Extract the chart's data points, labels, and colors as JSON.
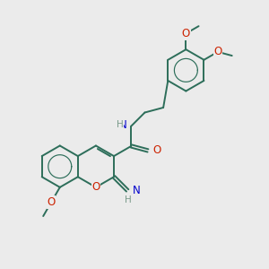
{
  "background_color": "#ebebeb",
  "bond_color": "#2d6e5a",
  "bond_width": 1.4,
  "atom_colors": {
    "O": "#cc2200",
    "N": "#0000cc",
    "H_gray": "#7a9a8a"
  },
  "font_size": 8.5,
  "fig_size": [
    3.0,
    3.0
  ],
  "dpi": 100
}
